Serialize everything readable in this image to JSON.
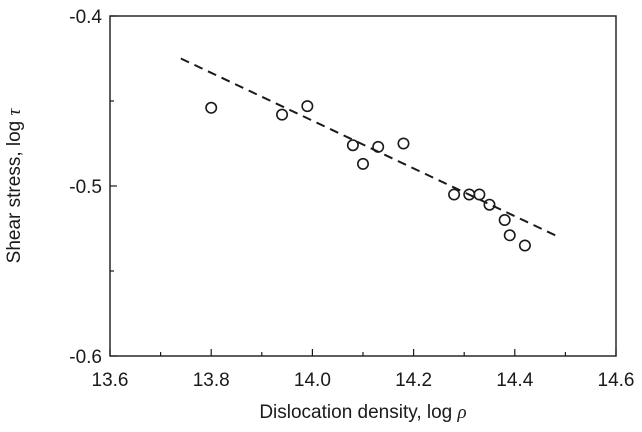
{
  "chart_data": {
    "type": "scatter",
    "title": "",
    "xlabel": "Dislocation density, log",
    "xlabel_symbol": "ρ",
    "ylabel": "Shear stress, log",
    "ylabel_symbol": "τ",
    "xlim": [
      13.6,
      14.6
    ],
    "ylim": [
      -0.6,
      -0.4
    ],
    "xticks": [
      13.6,
      13.8,
      14.0,
      14.2,
      14.4,
      14.6
    ],
    "xtick_labels": [
      "13.6",
      "13.8",
      "14.0",
      "14.2",
      "14.4",
      "14.6"
    ],
    "yticks": [
      -0.6,
      -0.5,
      -0.4
    ],
    "ytick_labels": [
      "-0.6",
      "-0.5",
      "-0.4"
    ],
    "grid": false,
    "marker_color": "#1a1a1a",
    "points": [
      {
        "x": 13.8,
        "y": -0.454
      },
      {
        "x": 13.94,
        "y": -0.458
      },
      {
        "x": 13.99,
        "y": -0.453
      },
      {
        "x": 14.08,
        "y": -0.476
      },
      {
        "x": 14.1,
        "y": -0.487
      },
      {
        "x": 14.13,
        "y": -0.477
      },
      {
        "x": 14.18,
        "y": -0.475
      },
      {
        "x": 14.28,
        "y": -0.505
      },
      {
        "x": 14.31,
        "y": -0.505
      },
      {
        "x": 14.33,
        "y": -0.505
      },
      {
        "x": 14.35,
        "y": -0.511
      },
      {
        "x": 14.38,
        "y": -0.52
      },
      {
        "x": 14.39,
        "y": -0.529
      },
      {
        "x": 14.42,
        "y": -0.535
      }
    ],
    "fit_line": {
      "style": "dashed",
      "points": [
        {
          "x": 13.74,
          "y": -0.425
        },
        {
          "x": 14.48,
          "y": -0.529
        }
      ]
    }
  }
}
